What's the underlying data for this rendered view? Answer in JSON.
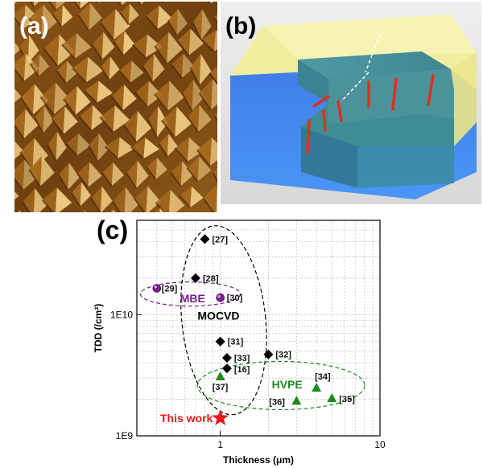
{
  "figure": {
    "panel_labels": {
      "a": "(a)",
      "b": "(b)",
      "c": "(c)"
    },
    "colors": {
      "afm_dark": "#3a1f06",
      "afm_mid": "#a86a1e",
      "afm_light": "#f3cf86",
      "film_yellow": "#f3ef98",
      "substrate_blue": "#3f86ee",
      "mid_teal": "#3d8c96",
      "dislocation_red": "#d9321e",
      "mbe_purple": "#7a1f8a",
      "mocvd_black": "#000000",
      "hvpe_green": "#1f8a1f",
      "this_work_red": "#e8191c"
    },
    "chart": {
      "xlabel": "Thickness (μm)",
      "ylabel": "TDD (/cm²)",
      "group_labels": {
        "mbe": "MBE",
        "mocvd": "MOCVD",
        "hvpe": "HVPE"
      },
      "this_work_label": "This work"
    }
  },
  "chart_data": {
    "type": "scatter",
    "xlabel": "Thickness (μm)",
    "ylabel": "TDD (/cm²)",
    "x_scale": "log",
    "y_scale": "log",
    "xlim": [
      0.3,
      10
    ],
    "ylim": [
      1000000000,
      60000000000
    ],
    "x_ticks": [
      1,
      10
    ],
    "x_tick_labels": [
      "1",
      "10"
    ],
    "y_ticks": [
      1000000000,
      10000000000
    ],
    "y_tick_labels": [
      "1E9",
      "1E10"
    ],
    "grid": true,
    "series": [
      {
        "name": "MBE",
        "marker": "sphere",
        "color": "#7a1f8a",
        "points": [
          {
            "label": "[29]",
            "x": 0.4,
            "y": 16500000000
          },
          {
            "label": "[30]",
            "x": 1.0,
            "y": 13800000000
          }
        ]
      },
      {
        "name": "MOCVD",
        "marker": "diamond",
        "color": "#000000",
        "points": [
          {
            "label": "[27]",
            "x": 0.8,
            "y": 42000000000
          },
          {
            "label": "[28]",
            "x": 0.7,
            "y": 20000000000
          },
          {
            "label": "[31]",
            "x": 1.0,
            "y": 6000000000
          },
          {
            "label": "[33]",
            "x": 1.1,
            "y": 4400000000
          },
          {
            "label": "[32]",
            "x": 2.0,
            "y": 4700000000
          },
          {
            "label": "[16]",
            "x": 1.1,
            "y": 3600000000
          }
        ]
      },
      {
        "name": "HVPE",
        "marker": "triangle",
        "color": "#1f8a1f",
        "points": [
          {
            "label": "[37]",
            "x": 1.0,
            "y": 3100000000
          },
          {
            "label": "[34]",
            "x": 4.0,
            "y": 2500000000
          },
          {
            "label": "[36]",
            "x": 3.0,
            "y": 1950000000
          },
          {
            "label": "[35]",
            "x": 5.0,
            "y": 2050000000
          }
        ]
      },
      {
        "name": "This work",
        "marker": "star",
        "color": "#e8191c",
        "points": [
          {
            "label": "This work",
            "x": 1.0,
            "y": 1400000000
          }
        ]
      }
    ]
  }
}
